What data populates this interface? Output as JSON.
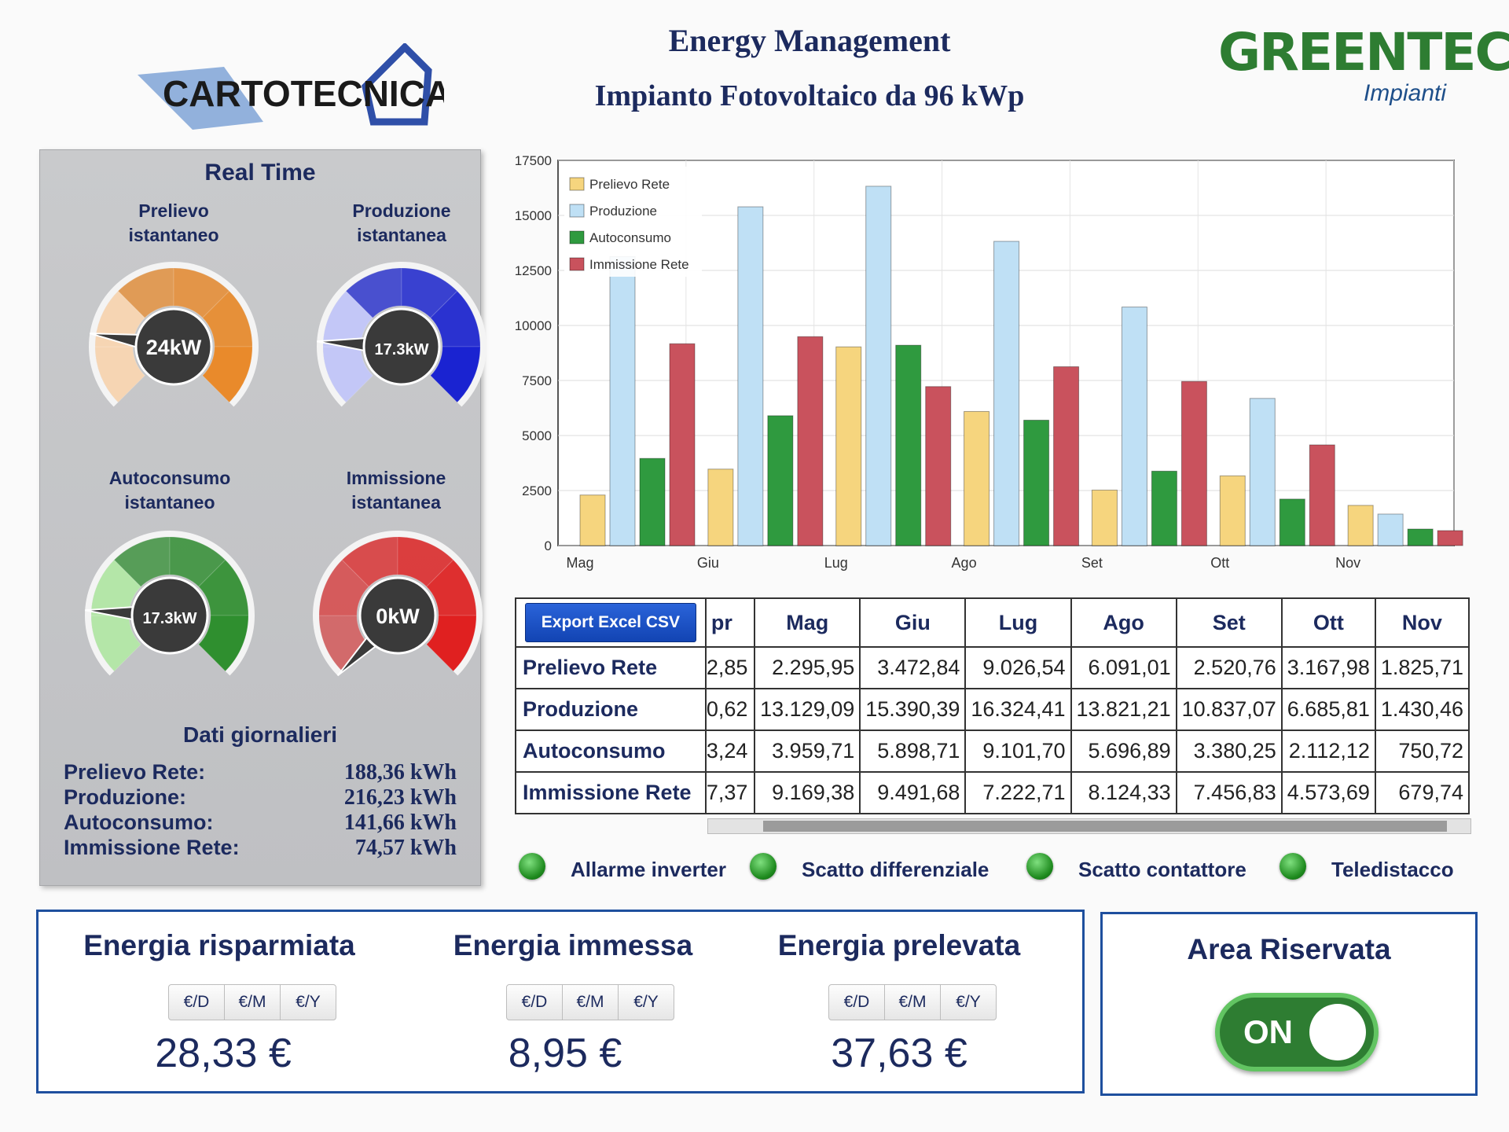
{
  "header": {
    "title": "Energy Management",
    "subtitle": "Impianto Fotovoltaico da 96 kWp",
    "left_logo_text": "CARTOTECNICA SEI",
    "right_logo_brand": "GREENTECH",
    "right_logo_sub": "Impianti"
  },
  "realtime": {
    "title": "Real Time",
    "gauges": [
      {
        "label_line1": "Prelievo",
        "label_line2": "istantaneo",
        "value": "24kW",
        "level": 0.2,
        "color": "#e98a2b",
        "light": "#f6d5b3"
      },
      {
        "label_line1": "Produzione",
        "label_line2": "istantanea",
        "value": "17.3kW",
        "level": 0.18,
        "color": "#1a23d1",
        "light": "#c3c7f7"
      },
      {
        "label_line1": "Autoconsumo",
        "label_line2": "istantaneo",
        "value": "17.3kW",
        "level": 0.18,
        "color": "#2f8f2f",
        "light": "#b4e6a8"
      },
      {
        "label_line1": "Immissione",
        "label_line2": "istantanea",
        "value": "0kW",
        "level": 0.0,
        "color": "#e02020",
        "light": "#f5c3c8"
      }
    ],
    "daily_title": "Dati giornalieri",
    "daily": [
      {
        "label": "Prelievo Rete:",
        "value": "188,36 kWh"
      },
      {
        "label": "Produzione:",
        "value": "216,23 kWh"
      },
      {
        "label": "Autoconsumo:",
        "value": "141,66 kWh"
      },
      {
        "label": "Immissione Rete:",
        "value": "74,57 kWh"
      }
    ]
  },
  "chart_data": {
    "type": "bar",
    "categories": [
      "Mag",
      "Giu",
      "Lug",
      "Ago",
      "Set",
      "Ott",
      "Nov"
    ],
    "yticks": [
      "0",
      "2500",
      "5000",
      "7500",
      "10000",
      "12500",
      "15000",
      "17500"
    ],
    "ylim": [
      0,
      17500
    ],
    "grid": true,
    "legend": "top-left",
    "series": [
      {
        "name": "Prelievo Rete",
        "color": "#f6d57e",
        "values": [
          2295.95,
          3472.84,
          9026.54,
          6091.01,
          2520.76,
          3167.98,
          1825.71
        ]
      },
      {
        "name": "Produzione",
        "color": "#bfe0f5",
        "values": [
          13129.09,
          15390.39,
          16324.41,
          13821.21,
          10837.07,
          6685.81,
          1430.46
        ]
      },
      {
        "name": "Autoconsumo",
        "color": "#2f9a3f",
        "values": [
          3959.71,
          5898.71,
          9101.7,
          5696.89,
          3380.25,
          2112.12,
          750.72
        ]
      },
      {
        "name": "Immissione Rete",
        "color": "#c9525d",
        "values": [
          9169.38,
          9491.68,
          7222.71,
          8124.33,
          7456.83,
          4573.69,
          679.74
        ]
      }
    ]
  },
  "table": {
    "export_label": "Export Excel CSV",
    "months": [
      "pr",
      "Mag",
      "Giu",
      "Lug",
      "Ago",
      "Set",
      "Ott",
      "Nov"
    ],
    "rows": [
      {
        "label": "Prelievo Rete",
        "cells": [
          "2,85",
          "2.295,95",
          "3.472,84",
          "9.026,54",
          "6.091,01",
          "2.520,76",
          "3.167,98",
          "1.825,71"
        ]
      },
      {
        "label": "Produzione",
        "cells": [
          "0,62",
          "13.129,09",
          "15.390,39",
          "16.324,41",
          "13.821,21",
          "10.837,07",
          "6.685,81",
          "1.430,46"
        ]
      },
      {
        "label": "Autoconsumo",
        "cells": [
          "3,24",
          "3.959,71",
          "5.898,71",
          "9.101,70",
          "5.696,89",
          "3.380,25",
          "2.112,12",
          "750,72"
        ]
      },
      {
        "label": "Immissione Rete",
        "cells": [
          "7,37",
          "9.169,38",
          "9.491,68",
          "7.222,71",
          "8.124,33",
          "7.456,83",
          "4.573,69",
          "679,74"
        ]
      }
    ]
  },
  "status": [
    {
      "label": "Allarme inverter"
    },
    {
      "label": "Scatto differenziale"
    },
    {
      "label": "Scatto contattore"
    },
    {
      "label": "Teledistacco"
    }
  ],
  "energy": [
    {
      "title": "Energia risparmiata",
      "buttons": [
        "€/D",
        "€/M",
        "€/Y"
      ],
      "value": "28,33 €"
    },
    {
      "title": "Energia immessa",
      "buttons": [
        "€/D",
        "€/M",
        "€/Y"
      ],
      "value": "8,95 €"
    },
    {
      "title": "Energia prelevata",
      "buttons": [
        "€/D",
        "€/M",
        "€/Y"
      ],
      "value": "37,63 €"
    }
  ],
  "area": {
    "title": "Area Riservata",
    "toggle_label": "ON"
  }
}
